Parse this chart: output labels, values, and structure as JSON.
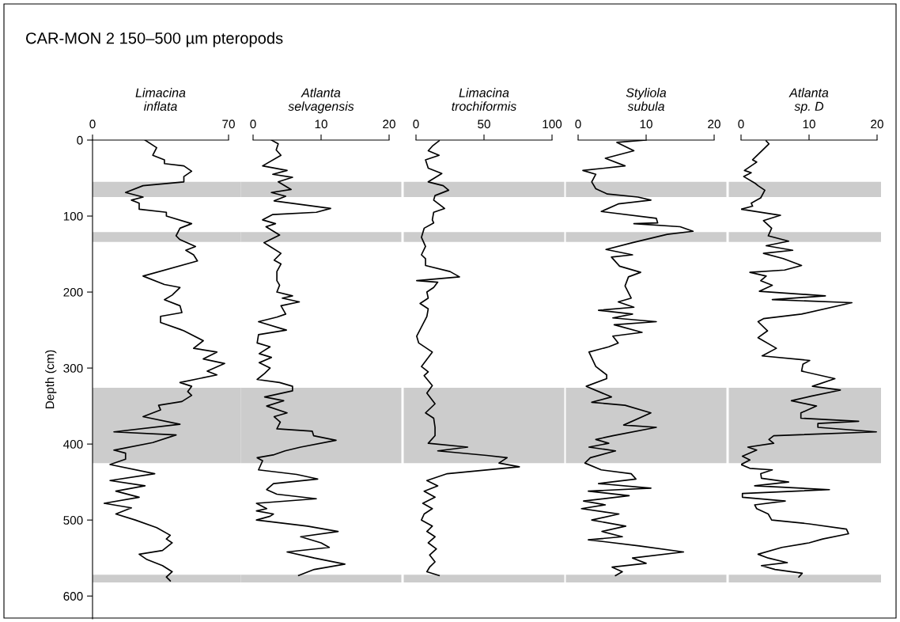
{
  "chart_data": [
    {
      "type": "line",
      "title": "CAR-MON 2 150–500 µm pteropods",
      "xlabel": "Limacina\ninflata",
      "ylabel": "Depth (cm)",
      "xlim": [
        0,
        70
      ],
      "xticks": [
        0,
        70
      ],
      "ylim": [
        630,
        0
      ],
      "yticks": [
        0,
        100,
        200,
        300,
        400,
        500,
        600
      ],
      "grid": false,
      "legend": false,
      "marker": "none",
      "line_style": "solid",
      "bands": [
        {
          "axis": "y",
          "from": 55,
          "to": 75,
          "color": "#cccccc"
        },
        {
          "axis": "y",
          "from": 121,
          "to": 134,
          "color": "#cccccc"
        },
        {
          "axis": "y",
          "from": 326,
          "to": 425,
          "color": "#cccccc"
        },
        {
          "axis": "y",
          "from": 572,
          "to": 582,
          "color": "#cccccc"
        }
      ],
      "series": [
        {
          "color": "#000000",
          "x": [
            27,
            33,
            31,
            37,
            37,
            47,
            51,
            47,
            47,
            26,
            17,
            26,
            20,
            24,
            24,
            38,
            38,
            51,
            45,
            43,
            45,
            53,
            48,
            52,
            54,
            26,
            37,
            45,
            41,
            37,
            45,
            46,
            35,
            35,
            45,
            47,
            57,
            52,
            64,
            57,
            68,
            59,
            64,
            45,
            51,
            49,
            51,
            46,
            34,
            35,
            26,
            45,
            11,
            43,
            31,
            11,
            17,
            17,
            9,
            32,
            9,
            27,
            12,
            24,
            6,
            20,
            12,
            22,
            33,
            40,
            38,
            41,
            36,
            24,
            28,
            36,
            41,
            38,
            40
          ],
          "values": [
            0,
            10,
            20,
            26,
            31,
            34,
            41,
            48,
            55,
            60,
            69,
            75,
            79,
            83,
            91,
            95,
            100,
            110,
            116,
            126,
            131,
            140,
            145,
            151,
            159,
            179,
            190,
            194,
            204,
            210,
            218,
            227,
            232,
            240,
            249,
            251,
            264,
            274,
            279,
            288,
            294,
            304,
            309,
            319,
            324,
            331,
            336,
            344,
            349,
            355,
            364,
            374,
            384,
            388,
            398,
            408,
            412,
            420,
            427,
            439,
            448,
            455,
            462,
            470,
            478,
            484,
            492,
            500,
            510,
            520,
            525,
            530,
            540,
            545,
            552,
            560,
            568,
            575,
            580
          ]
        }
      ]
    },
    {
      "type": "line",
      "xlabel": "Atlanta\nselvagensis",
      "xlim": [
        0,
        20
      ],
      "xticks": [
        0,
        10,
        20
      ],
      "ylim": [
        630,
        0
      ],
      "tick_labels": "x",
      "grid": false,
      "legend": false,
      "marker": "none",
      "line_style": "solid",
      "bands": [
        {
          "axis": "y",
          "from": 55,
          "to": 75,
          "color": "#cccccc"
        },
        {
          "axis": "y",
          "from": 121,
          "to": 134,
          "color": "#cccccc"
        },
        {
          "axis": "y",
          "from": 326,
          "to": 425,
          "color": "#cccccc"
        },
        {
          "axis": "y",
          "from": 572,
          "to": 582,
          "color": "#cccccc"
        }
      ],
      "series": [
        {
          "color": "#000000",
          "x": [
            2.7,
            3.7,
            3.4,
            4.1,
            1.4,
            5.0,
            2.9,
            5.8,
            3.7,
            5.6,
            2.7,
            4.8,
            3.1,
            11.4,
            9.3,
            2.9,
            1.4,
            3.3,
            1.9,
            3.9,
            1.6,
            2.5,
            4.1,
            3.1,
            4.1,
            3.5,
            3.5,
            3.9,
            3.5,
            5.8,
            4.3,
            6.8,
            4.1,
            4.8,
            3.5,
            0.8,
            4.9,
            0.8,
            0.6,
            2.5,
            0.9,
            2.7,
            0.9,
            2.5,
            1.7,
            0.6,
            3.9,
            5.8,
            5.8,
            1.7,
            4.5,
            2.0,
            5.0,
            3.1,
            4.0,
            3.5,
            8.7,
            8.9,
            12.2,
            7.0,
            4.7,
            3.1,
            0.6,
            1.4,
            0.8,
            6.4,
            9.5,
            3.0,
            2.0,
            3.5,
            9.3,
            0.5,
            2.0,
            0.5,
            3.0,
            2.5,
            0.5,
            8.0,
            12.5,
            7.0,
            10.0,
            11.2,
            5.0,
            9.0,
            13.5,
            9.0,
            6.7
          ],
          "values": [
            0,
            5,
            13,
            20,
            34,
            40,
            45,
            49,
            55,
            65,
            69,
            74,
            80,
            90,
            95,
            98,
            105,
            110,
            114,
            125,
            135,
            140,
            149,
            158,
            163,
            173,
            185,
            191,
            200,
            205,
            208,
            213,
            218,
            229,
            233,
            239,
            250,
            256,
            267,
            272,
            281,
            286,
            293,
            300,
            307,
            315,
            319,
            324,
            330,
            338,
            343,
            350,
            359,
            364,
            371,
            380,
            383,
            389,
            395,
            404,
            409,
            414,
            418,
            422,
            434,
            440,
            446,
            452,
            460,
            466,
            472,
            478,
            485,
            488,
            492,
            495,
            500,
            508,
            515,
            522,
            530,
            536,
            542,
            550,
            558,
            565,
            573
          ]
        }
      ]
    },
    {
      "type": "line",
      "xlabel": "Limacina\ntrochiformis",
      "xlim": [
        0,
        100
      ],
      "xticks": [
        0,
        50,
        100
      ],
      "ylim": [
        630,
        0
      ],
      "tick_labels": "x",
      "grid": false,
      "legend": false,
      "marker": "none",
      "line_style": "solid",
      "bands": [
        {
          "axis": "y",
          "from": 55,
          "to": 75,
          "color": "#cccccc"
        },
        {
          "axis": "y",
          "from": 121,
          "to": 134,
          "color": "#cccccc"
        },
        {
          "axis": "y",
          "from": 326,
          "to": 425,
          "color": "#cccccc"
        },
        {
          "axis": "y",
          "from": 572,
          "to": 582,
          "color": "#cccccc"
        }
      ],
      "series": [
        {
          "color": "#000000",
          "x": [
            17,
            12,
            9,
            17,
            7,
            9,
            19,
            9,
            20,
            24,
            14,
            13,
            21,
            13,
            12,
            13,
            6,
            4,
            7,
            4,
            7,
            7,
            25,
            32,
            0.5,
            16,
            13,
            8,
            9,
            3,
            9,
            8,
            0.5,
            2,
            12,
            4,
            9,
            6,
            12,
            8,
            14,
            7,
            13,
            14,
            14,
            9,
            38,
            16,
            52,
            67,
            61,
            76,
            23,
            8,
            16,
            6,
            14,
            5,
            12,
            6,
            4,
            12,
            8,
            14,
            9,
            15,
            10,
            14,
            10,
            8,
            17
          ],
          "values": [
            1,
            8,
            14,
            20,
            26,
            37,
            44,
            55,
            60,
            66,
            73,
            79,
            90,
            95,
            105,
            109,
            116,
            128,
            140,
            151,
            156,
            165,
            173,
            180,
            185,
            187,
            194,
            200,
            208,
            215,
            222,
            232,
            258,
            267,
            279,
            298,
            305,
            310,
            323,
            333,
            347,
            359,
            366,
            378,
            389,
            399,
            404,
            409,
            415,
            418,
            425,
            430,
            439,
            448,
            455,
            462,
            470,
            478,
            485,
            492,
            500,
            508,
            515,
            522,
            530,
            538,
            546,
            555,
            562,
            568,
            573
          ]
        }
      ]
    },
    {
      "type": "line",
      "xlabel": "Styliola\nsubula",
      "xlim": [
        0,
        20
      ],
      "xticks": [
        0,
        10,
        20
      ],
      "ylim": [
        630,
        0
      ],
      "tick_labels": "x",
      "grid": false,
      "legend": false,
      "marker": "none",
      "line_style": "solid",
      "bands": [
        {
          "axis": "y",
          "from": 55,
          "to": 75,
          "color": "#cccccc"
        },
        {
          "axis": "y",
          "from": 121,
          "to": 134,
          "color": "#cccccc"
        },
        {
          "axis": "y",
          "from": 326,
          "to": 425,
          "color": "#cccccc"
        },
        {
          "axis": "y",
          "from": 572,
          "to": 582,
          "color": "#cccccc"
        }
      ],
      "series": [
        {
          "color": "#000000",
          "x": [
            10.0,
            5.7,
            8.2,
            4.0,
            6.9,
            0.7,
            2.6,
            2.0,
            2.6,
            4.3,
            8.8,
            10.7,
            5.9,
            3.4,
            11.5,
            11.7,
            8.2,
            15.0,
            16.9,
            13.1,
            8.0,
            4.1,
            8.0,
            4.9,
            6.1,
            9.2,
            7.4,
            6.9,
            7.8,
            5.9,
            8.2,
            3.0,
            8.0,
            5.1,
            11.5,
            5.3,
            9.4,
            5.1,
            5.9,
            4.5,
            1.6,
            2.6,
            4.2,
            4.2,
            1.2,
            4.9,
            2.0,
            6.9,
            10.7,
            6.7,
            11.5,
            5.1,
            2.6,
            4.5,
            1.6,
            5.5,
            1.8,
            1.0,
            3.4,
            7.8,
            8.5,
            3.0,
            10.7,
            1.5,
            7.5,
            0.8,
            4.0,
            0.5,
            6.0,
            2.0,
            7.0,
            3.5,
            6.5,
            1.5,
            9.0,
            15.5,
            8.0,
            10.0,
            5.0,
            6.5,
            5.5
          ],
          "values": [
            0,
            3,
            14,
            24,
            34,
            40,
            45,
            55,
            64,
            71,
            75,
            79,
            84,
            94,
            103,
            109,
            110,
            114,
            120,
            124,
            135,
            144,
            151,
            154,
            166,
            174,
            180,
            192,
            208,
            213,
            220,
            224,
            229,
            234,
            239,
            243,
            253,
            258,
            267,
            272,
            279,
            298,
            309,
            314,
            324,
            338,
            345,
            349,
            359,
            375,
            378,
            389,
            394,
            399,
            404,
            409,
            418,
            425,
            434,
            439,
            446,
            452,
            458,
            462,
            468,
            475,
            480,
            485,
            492,
            500,
            508,
            515,
            522,
            526,
            534,
            542,
            550,
            557,
            562,
            568,
            573
          ]
        }
      ]
    },
    {
      "type": "line",
      "xlabel": "Atlanta\nsp. D",
      "xlim": [
        0,
        20
      ],
      "xticks": [
        0,
        10,
        20
      ],
      "ylim": [
        630,
        0
      ],
      "tick_labels": "x",
      "grid": false,
      "legend": false,
      "marker": "none",
      "line_style": "solid",
      "bands": [
        {
          "axis": "y",
          "from": 55,
          "to": 75,
          "color": "#cccccc"
        },
        {
          "axis": "y",
          "from": 121,
          "to": 134,
          "color": "#cccccc"
        },
        {
          "axis": "y",
          "from": 326,
          "to": 425,
          "color": "#cccccc"
        },
        {
          "axis": "y",
          "from": 572,
          "to": 582,
          "color": "#cccccc"
        }
      ],
      "series": [
        {
          "color": "#000000",
          "x": [
            3.7,
            4.1,
            1.7,
            2.3,
            0.5,
            1.5,
            0.4,
            2.1,
            2.5,
            3.5,
            2.9,
            1.5,
            1.7,
            0.0,
            5.8,
            3.3,
            4.5,
            4.0,
            7.0,
            3.7,
            7.6,
            3.3,
            6.2,
            8.9,
            6.4,
            1.3,
            3.7,
            2.9,
            4.6,
            2.7,
            12.4,
            4.6,
            16.3,
            8.9,
            3.3,
            2.5,
            3.9,
            2.5,
            5.2,
            3.1,
            10.1,
            9.1,
            8.9,
            13.8,
            10.5,
            14.6,
            10.3,
            7.4,
            11.1,
            8.8,
            8.8,
            17.3,
            11.3,
            11.3,
            19.9,
            4.8,
            4.1,
            4.8,
            1.0,
            2.3,
            0.2,
            1.3,
            0.0,
            1.3,
            4.6,
            2.9,
            3.0,
            7.0,
            2.0,
            13.0,
            0.2,
            0.2,
            6.5,
            2.0,
            2.3,
            4.0,
            4.5,
            10.0,
            15.5,
            15.8,
            12.0,
            10.0,
            6.0,
            2.5,
            4.0,
            6.8,
            3.0,
            5.0,
            9.0,
            8.5
          ],
          "values": [
            1,
            5,
            26,
            29,
            40,
            43,
            48,
            57,
            60,
            66,
            76,
            83,
            87,
            91,
            99,
            106,
            116,
            126,
            133,
            139,
            145,
            149,
            156,
            165,
            171,
            174,
            179,
            185,
            191,
            199,
            205,
            210,
            214,
            229,
            235,
            239,
            251,
            260,
            274,
            284,
            290,
            295,
            304,
            314,
            324,
            329,
            337,
            343,
            350,
            359,
            366,
            370,
            373,
            378,
            384,
            389,
            394,
            399,
            404,
            408,
            416,
            421,
            427,
            432,
            434,
            439,
            445,
            450,
            455,
            460,
            465,
            470,
            475,
            480,
            485,
            492,
            500,
            505,
            512,
            518,
            525,
            530,
            536,
            545,
            550,
            556,
            560,
            565,
            570,
            575
          ]
        }
      ]
    }
  ]
}
